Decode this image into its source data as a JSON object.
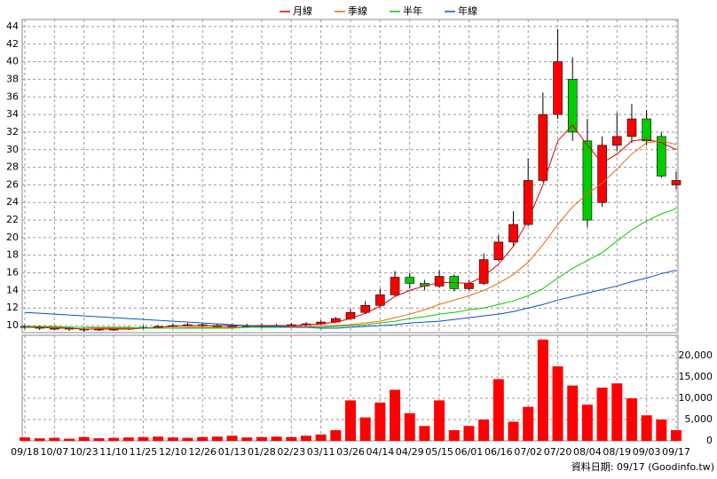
{
  "chart_data": [
    {
      "type": "candlestick",
      "categories": [
        "09/18",
        null,
        "10/07",
        null,
        "10/23",
        null,
        "11/10",
        null,
        "11/25",
        null,
        "12/10",
        null,
        "12/26",
        null,
        "01/13",
        null,
        "01/28",
        null,
        "02/23",
        null,
        "03/11",
        null,
        "03/26",
        null,
        "04/14",
        null,
        "04/29",
        null,
        "05/15",
        null,
        "06/01",
        null,
        "06/16",
        null,
        "07/02",
        null,
        "07/20",
        null,
        "08/04",
        null,
        "08/19",
        null,
        "09/03",
        null,
        "09/17"
      ],
      "open": [
        9.9,
        9.8,
        9.7,
        9.7,
        9.6,
        9.5,
        9.6,
        9.6,
        9.7,
        9.8,
        9.9,
        10.0,
        10.1,
        10.0,
        9.9,
        10.0,
        10.0,
        9.9,
        10.0,
        10.1,
        10.2,
        10.4,
        10.8,
        11.5,
        12.3,
        13.5,
        15.5,
        14.8,
        14.5,
        15.6,
        14.2,
        14.8,
        17.5,
        19.5,
        21.5,
        26.5,
        34,
        38,
        31,
        24,
        30.5,
        31.5,
        33.5,
        31.5,
        26
      ],
      "high": [
        10.1,
        10.0,
        9.9,
        9.9,
        9.8,
        9.8,
        9.8,
        9.9,
        10.0,
        10.1,
        10.2,
        10.3,
        10.3,
        10.2,
        10.2,
        10.2,
        10.2,
        10.2,
        10.3,
        10.4,
        10.6,
        11.0,
        11.9,
        12.8,
        14.2,
        16.2,
        16.0,
        15.2,
        16.3,
        15.8,
        15.2,
        18.2,
        20.3,
        23.0,
        29.0,
        36.5,
        43.7,
        40.5,
        33.5,
        31.5,
        34.2,
        35.2,
        34.5,
        32.0,
        27.5
      ],
      "low": [
        9.6,
        9.5,
        9.5,
        9.4,
        9.3,
        9.4,
        9.4,
        9.5,
        9.6,
        9.7,
        9.8,
        9.9,
        9.8,
        9.7,
        9.8,
        9.8,
        9.7,
        9.8,
        9.9,
        10.0,
        10.1,
        10.3,
        10.6,
        11.3,
        12.1,
        13.3,
        14.2,
        14.0,
        14.3,
        13.9,
        14.0,
        14.6,
        17.3,
        19.0,
        21.3,
        26.3,
        33.5,
        31.0,
        21.2,
        23.5,
        29.8,
        30.8,
        30.5,
        26.8,
        25.5
      ],
      "close": [
        9.8,
        9.7,
        9.7,
        9.6,
        9.5,
        9.6,
        9.6,
        9.7,
        9.8,
        9.9,
        10.0,
        10.1,
        10.0,
        9.9,
        10.0,
        10.0,
        9.9,
        10.0,
        10.1,
        10.2,
        10.4,
        10.8,
        11.5,
        12.3,
        13.5,
        15.5,
        14.8,
        14.5,
        15.6,
        14.2,
        14.8,
        17.5,
        19.5,
        21.5,
        26.5,
        34,
        40,
        32,
        22,
        30.5,
        31.5,
        33.5,
        31,
        27,
        26.5
      ],
      "up_color": "#ff0000",
      "down_color": "#00cc00",
      "series": [
        {
          "name": "月線",
          "color": "#dd0000",
          "values": [
            9.8,
            9.8,
            9.7,
            9.7,
            9.6,
            9.6,
            9.6,
            9.6,
            9.7,
            9.8,
            9.9,
            10.0,
            10.0,
            10.0,
            10.0,
            10.0,
            10.0,
            10.0,
            10.0,
            10.1,
            10.2,
            10.4,
            10.8,
            11.4,
            12.2,
            13.3,
            14.0,
            14.5,
            14.9,
            14.9,
            14.8,
            15.6,
            17.0,
            19.0,
            22.0,
            26.0,
            31.0,
            32.8,
            30.5,
            28.5,
            29.5,
            31.0,
            31.2,
            30.8,
            30.0
          ]
        },
        {
          "name": "季線",
          "color": "#ee6600",
          "values": [
            9.9,
            9.9,
            9.8,
            9.8,
            9.8,
            9.7,
            9.7,
            9.7,
            9.7,
            9.7,
            9.7,
            9.8,
            9.8,
            9.8,
            9.8,
            9.8,
            9.9,
            9.9,
            9.9,
            9.9,
            10.0,
            10.0,
            10.1,
            10.3,
            10.5,
            10.9,
            11.3,
            11.8,
            12.4,
            12.9,
            13.4,
            14.0,
            14.8,
            15.8,
            17.2,
            19.2,
            21.5,
            23.5,
            25.0,
            26.2,
            27.8,
            29.5,
            30.8,
            31.0,
            30.6
          ]
        },
        {
          "name": "半年",
          "color": "#00cc00",
          "values": [
            9.9,
            9.9,
            9.9,
            9.8,
            9.8,
            9.8,
            9.8,
            9.8,
            9.7,
            9.7,
            9.7,
            9.7,
            9.7,
            9.7,
            9.7,
            9.8,
            9.8,
            9.8,
            9.8,
            9.8,
            9.8,
            9.9,
            10.0,
            10.1,
            10.3,
            10.5,
            10.8,
            11.0,
            11.3,
            11.5,
            11.8,
            12.0,
            12.4,
            12.8,
            13.4,
            14.2,
            15.4,
            16.5,
            17.4,
            18.3,
            19.6,
            20.9,
            21.9,
            22.7,
            23.3
          ]
        },
        {
          "name": "年線",
          "color": "#0055cc",
          "values": [
            11.5,
            11.4,
            11.3,
            11.2,
            11.1,
            11.0,
            10.9,
            10.8,
            10.7,
            10.6,
            10.5,
            10.4,
            10.3,
            10.2,
            10.1,
            10.0,
            9.9,
            9.9,
            9.8,
            9.8,
            9.7,
            9.7,
            9.8,
            9.9,
            10.0,
            10.1,
            10.3,
            10.4,
            10.5,
            10.7,
            10.9,
            11.1,
            11.3,
            11.6,
            12.0,
            12.4,
            12.9,
            13.3,
            13.7,
            14.1,
            14.5,
            15.0,
            15.4,
            15.9,
            16.3
          ]
        }
      ],
      "ylim": [
        9.2,
        44.8
      ],
      "yticks": [
        10,
        12,
        14,
        16,
        18,
        20,
        22,
        24,
        26,
        28,
        30,
        32,
        34,
        36,
        38,
        40,
        42,
        44
      ],
      "grid": true
    },
    {
      "type": "bar",
      "color": "#ff0000",
      "values": [
        800,
        600,
        700,
        500,
        900,
        600,
        700,
        800,
        900,
        1000,
        800,
        700,
        900,
        1000,
        1200,
        800,
        900,
        1000,
        900,
        1200,
        1500,
        2500,
        9500,
        5500,
        9000,
        12000,
        6500,
        3500,
        9500,
        2500,
        3500,
        5000,
        14500,
        4500,
        8000,
        23800,
        17500,
        13000,
        8500,
        12500,
        13500,
        10000,
        6000,
        5000,
        2500
      ],
      "ylim": [
        0,
        24800
      ],
      "yticks": [
        0,
        {
          "value": 5000,
          "label": "5,000"
        },
        {
          "value": 10000,
          "label": "10,000"
        },
        {
          "value": 15000,
          "label": "15,000"
        },
        {
          "value": 20000,
          "label": "20,000"
        }
      ],
      "grid": true
    }
  ],
  "footer": "資料日期: 09/17 (Goodinfo.tw)"
}
